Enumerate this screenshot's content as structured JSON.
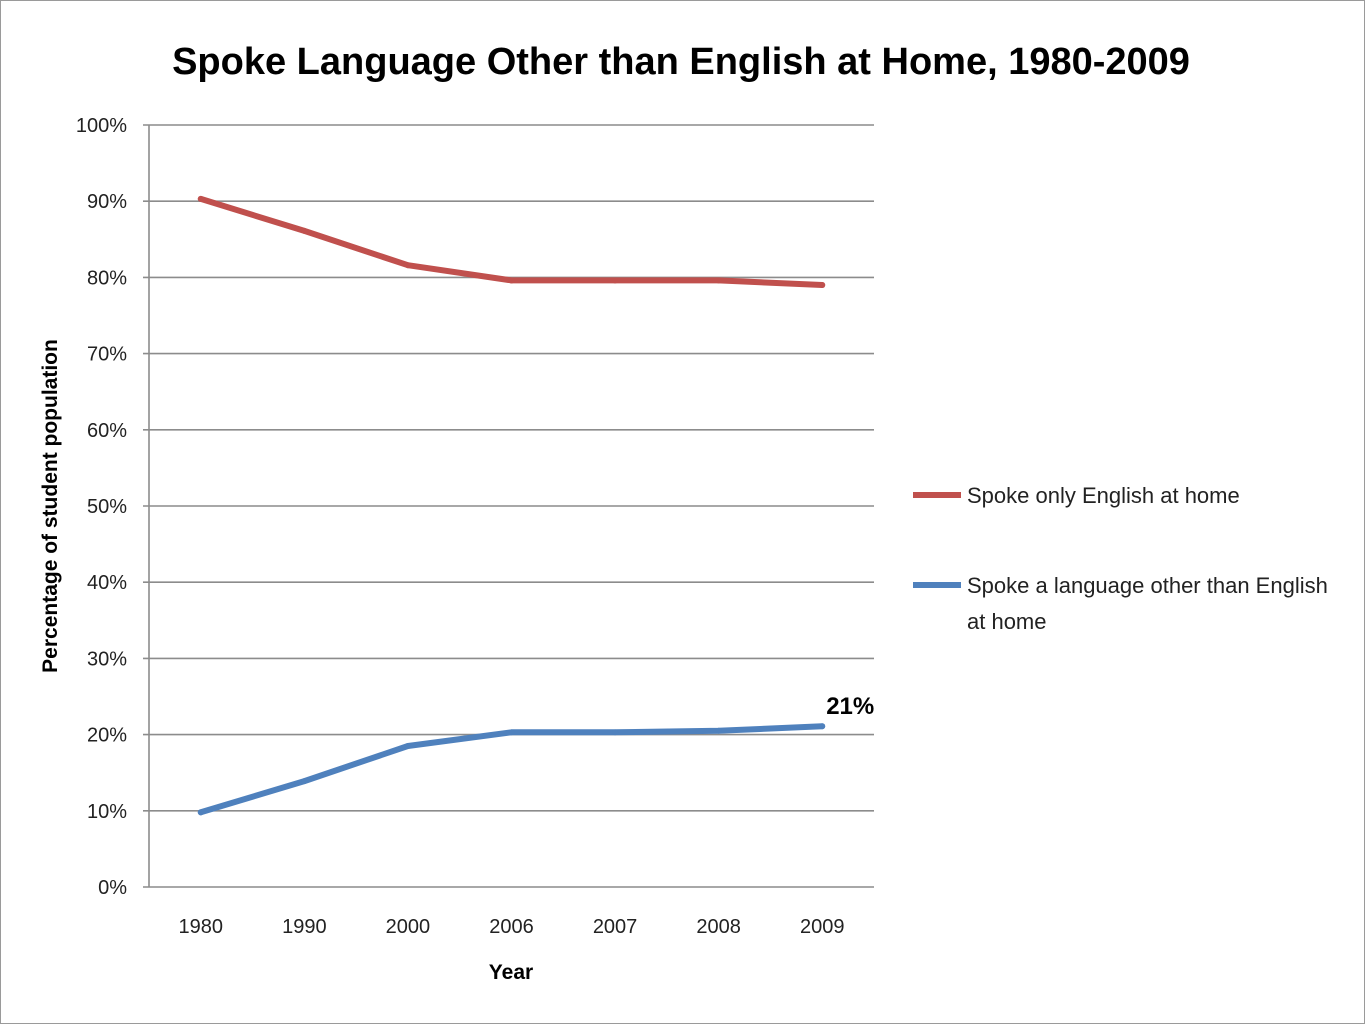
{
  "chart_data": {
    "type": "line",
    "title": "Spoke Language Other than English at Home, 1980-2009",
    "xlabel": "Year",
    "ylabel": "Percentage of student population",
    "categories": [
      "1980",
      "1990",
      "2000",
      "2006",
      "2007",
      "2008",
      "2009"
    ],
    "ylim": [
      0,
      100
    ],
    "y_ticks": [
      0,
      10,
      20,
      30,
      40,
      50,
      60,
      70,
      80,
      90,
      100
    ],
    "y_tick_labels": [
      "0%",
      "10%",
      "20%",
      "30%",
      "40%",
      "50%",
      "60%",
      "70%",
      "80%",
      "90%",
      "100%"
    ],
    "grid": true,
    "legend_position": "right",
    "series": [
      {
        "name": "Spoke only English at home",
        "color": "#c0504d",
        "values": [
          90.3,
          86.1,
          81.6,
          79.6,
          79.6,
          79.6,
          79.0
        ]
      },
      {
        "name": "Spoke a language other than English at home",
        "color": "#4f81bd",
        "values": [
          9.8,
          13.9,
          18.5,
          20.3,
          20.3,
          20.5,
          21.1
        ]
      }
    ],
    "annotations": [
      {
        "text": "21%",
        "series": 1,
        "category": "2009"
      }
    ]
  }
}
